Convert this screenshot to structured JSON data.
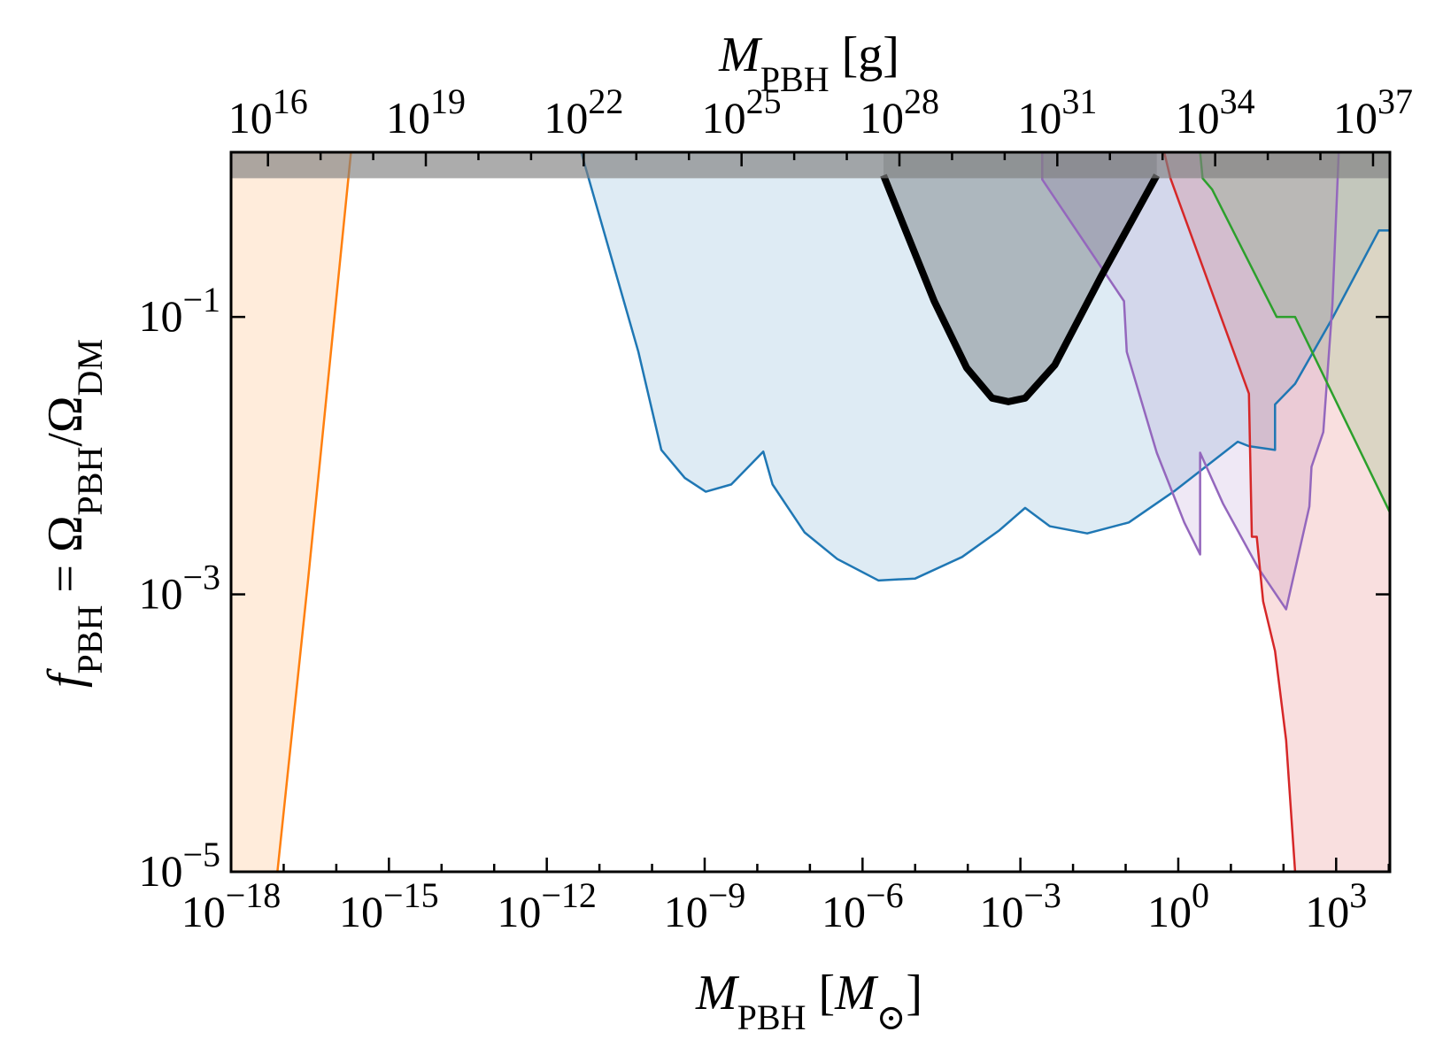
{
  "chart_data": {
    "type": "line",
    "xlabel": [
      "M",
      "PBH",
      " [",
      "M",
      "⊙",
      "]"
    ],
    "x2label": [
      "M",
      "PBH",
      " [g]"
    ],
    "ylabel": [
      "f",
      "PBH",
      " = Ω",
      "PBH",
      "/Ω",
      "DM"
    ],
    "xscale": "log",
    "yscale": "log",
    "xlim": [
      1e-18,
      10500.0
    ],
    "x2lim": [
      1989000000000000.0,
      2.09e+37
    ],
    "ylim": [
      1e-05,
      1.54
    ],
    "xticks": [
      {
        "value": 1e-18,
        "label": "10",
        "exponent": "−18"
      },
      {
        "value": 1e-15,
        "label": "10",
        "exponent": "−15"
      },
      {
        "value": 1e-12,
        "label": "10",
        "exponent": "−12"
      },
      {
        "value": 1e-09,
        "label": "10",
        "exponent": "−9"
      },
      {
        "value": 1e-06,
        "label": "10",
        "exponent": "−6"
      },
      {
        "value": 0.001,
        "label": "10",
        "exponent": "−3"
      },
      {
        "value": 1,
        "label": "10",
        "exponent": "0"
      },
      {
        "value": 1000.0,
        "label": "10",
        "exponent": "3"
      }
    ],
    "xticks_minor": [
      1e-17,
      1e-16,
      1e-14,
      1e-13,
      1e-11,
      1e-10,
      1e-08,
      1e-07,
      1e-05,
      0.0001,
      0.01,
      0.1,
      10,
      100,
      10000.0
    ],
    "x2ticks": [
      {
        "value": 1e+16,
        "label": "10",
        "exponent": "16"
      },
      {
        "value": 1e+19,
        "label": "10",
        "exponent": "19"
      },
      {
        "value": 1e+22,
        "label": "10",
        "exponent": "22"
      },
      {
        "value": 1e+25,
        "label": "10",
        "exponent": "25"
      },
      {
        "value": 1e+28,
        "label": "10",
        "exponent": "28"
      },
      {
        "value": 1e+31,
        "label": "10",
        "exponent": "31"
      },
      {
        "value": 1e+34,
        "label": "10",
        "exponent": "34"
      },
      {
        "value": 1e+37,
        "label": "10",
        "exponent": "37"
      }
    ],
    "x2ticks_minor": [
      1e+17,
      1e+18,
      1e+20,
      1e+21,
      1e+23,
      1e+24,
      1e+26,
      1e+27,
      1e+29,
      1e+30,
      1e+32,
      1e+33,
      1e+35,
      1e+36
    ],
    "yticks": [
      {
        "value": 1e-05,
        "label": "10",
        "exponent": "−5"
      },
      {
        "value": 0.001,
        "label": "10",
        "exponent": "−3"
      },
      {
        "value": 0.1,
        "label": "10",
        "exponent": "−1"
      }
    ],
    "shade_above": {
      "value": 1,
      "color": "#808080"
    },
    "series": [
      {
        "color": "#ff7f0e",
        "fill_to": "left",
        "linewidth": 2.5,
        "x": [
          7.6e-18,
          2.9e-17,
          1.9e-16
        ],
        "values": [
          1e-05,
          0.00126,
          1.54
        ]
      },
      {
        "color": "#1f77b4",
        "fill_to": "top",
        "linewidth": 2.5,
        "x": [
          4.5e-12,
          5.5e-11,
          1.5e-10,
          4.2e-10,
          1.05e-09,
          3.2e-09,
          1.3e-08,
          1.95e-08,
          7.9e-08,
          3.3e-07,
          2e-06,
          1e-05,
          7.8e-05,
          0.0004,
          0.00123,
          0.0036,
          0.0186,
          0.115,
          0.87,
          13.5,
          22,
          69,
          69,
          166,
          850,
          6500,
          10500.0
        ],
        "values": [
          1.54,
          0.056,
          0.011,
          0.0069,
          0.0055,
          0.0062,
          0.0107,
          0.0062,
          0.0028,
          0.0018,
          0.00126,
          0.0013,
          0.00186,
          0.0029,
          0.0042,
          0.0031,
          0.00275,
          0.0033,
          0.0056,
          0.0126,
          0.0117,
          0.011,
          0.0234,
          0.033,
          0.098,
          0.42,
          0.42
        ]
      },
      {
        "color": "#9467bd",
        "fill_to": "top",
        "linewidth": 2.5,
        "x": [
          0.0026,
          0.0026,
          0.093,
          0.105,
          0.39,
          1.3,
          2.6,
          2.6,
          7.1,
          33,
          112,
          310,
          340,
          570,
          850,
          1120
        ],
        "values": [
          1.54,
          0.98,
          0.13,
          0.056,
          0.0105,
          0.0033,
          0.00194,
          0.0105,
          0.0045,
          0.00155,
          0.00078,
          0.0043,
          0.0083,
          0.0148,
          0.123,
          1.54
        ]
      },
      {
        "color": "#d62728",
        "fill_to": "right",
        "linewidth": 2.5,
        "x": [
          0.54,
          0.71,
          22,
          25,
          31,
          41,
          69,
          112,
          166
        ],
        "values": [
          1.54,
          1.0,
          0.028,
          0.0026,
          0.0026,
          0.00089,
          0.00039,
          8.9e-05,
          1e-05
        ]
      },
      {
        "color": "#2ca02c",
        "fill_to": "top",
        "linewidth": 2.5,
        "x": [
          2.6,
          2.9,
          4.4,
          74,
          166,
          10500.0
        ],
        "values": [
          1.54,
          1.0,
          0.83,
          0.1,
          0.1,
          0.0039
        ]
      },
      {
        "color": "#000000",
        "fill_to": "top",
        "linewidth": 8,
        "x": [
          2.5e-06,
          5.6e-06,
          2.3e-05,
          9.5e-05,
          0.00029,
          0.00059,
          0.00123,
          0.0045,
          0.034,
          0.39
        ],
        "values": [
          1.05,
          0.49,
          0.13,
          0.043,
          0.026,
          0.0245,
          0.026,
          0.045,
          0.195,
          1.05
        ]
      }
    ]
  }
}
